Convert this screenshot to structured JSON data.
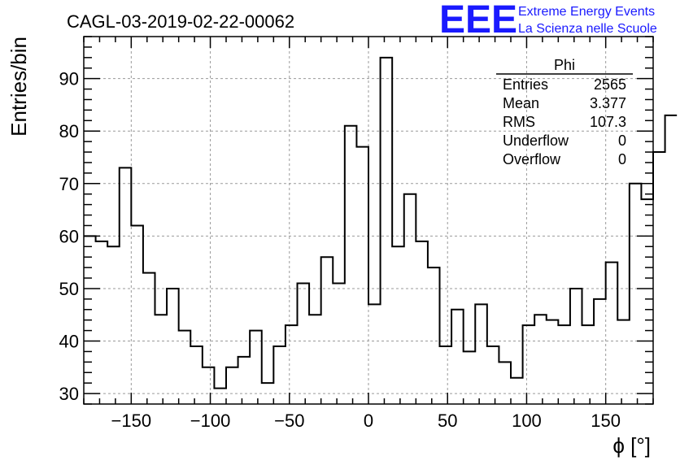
{
  "colors": {
    "logo": "#1a1aff",
    "line": "#000000",
    "grid": "#9a9a9a"
  },
  "logo": {
    "mark": "EEE",
    "line1": "Extreme Energy Events",
    "line2": "La Scienza nelle Scuole"
  },
  "chart_data": {
    "type": "bar",
    "style": "step-histogram",
    "title": "CAGL-03-2019-02-22-00062",
    "xlabel": "ϕ [°]",
    "ylabel": "Entries/bin",
    "xlim": [
      -180,
      180
    ],
    "ylim": [
      28,
      98
    ],
    "grid": true,
    "xticks": [
      -150,
      -100,
      -50,
      0,
      50,
      100,
      150
    ],
    "xtick_labels": [
      "−150",
      "−100",
      "−50",
      "0",
      "50",
      "100",
      "150"
    ],
    "yticks": [
      30,
      40,
      50,
      60,
      70,
      80,
      90
    ],
    "ytick_labels": [
      "30",
      "40",
      "50",
      "60",
      "70",
      "80",
      "90"
    ],
    "bin_width": 7.5,
    "bin_edges_start": -180,
    "values": [
      60,
      59,
      58,
      73,
      62,
      53,
      45,
      50,
      42,
      39,
      35,
      31,
      35,
      37,
      42,
      32,
      39,
      43,
      51,
      45,
      56,
      51,
      81,
      77,
      47,
      94,
      58,
      68,
      59,
      54,
      39,
      46,
      38,
      47,
      39,
      36,
      33,
      43,
      45,
      44,
      43,
      50,
      43,
      48,
      55,
      44,
      70,
      67,
      76,
      83
    ],
    "legend": {
      "name": "Phi",
      "placement": "top-right",
      "rows": [
        {
          "label": "Entries",
          "value": "2565"
        },
        {
          "label": "Mean",
          "value": "3.377"
        },
        {
          "label": "RMS",
          "value": "107.3"
        },
        {
          "label": "Underflow",
          "value": "0"
        },
        {
          "label": "Overflow",
          "value": "0"
        }
      ]
    }
  }
}
